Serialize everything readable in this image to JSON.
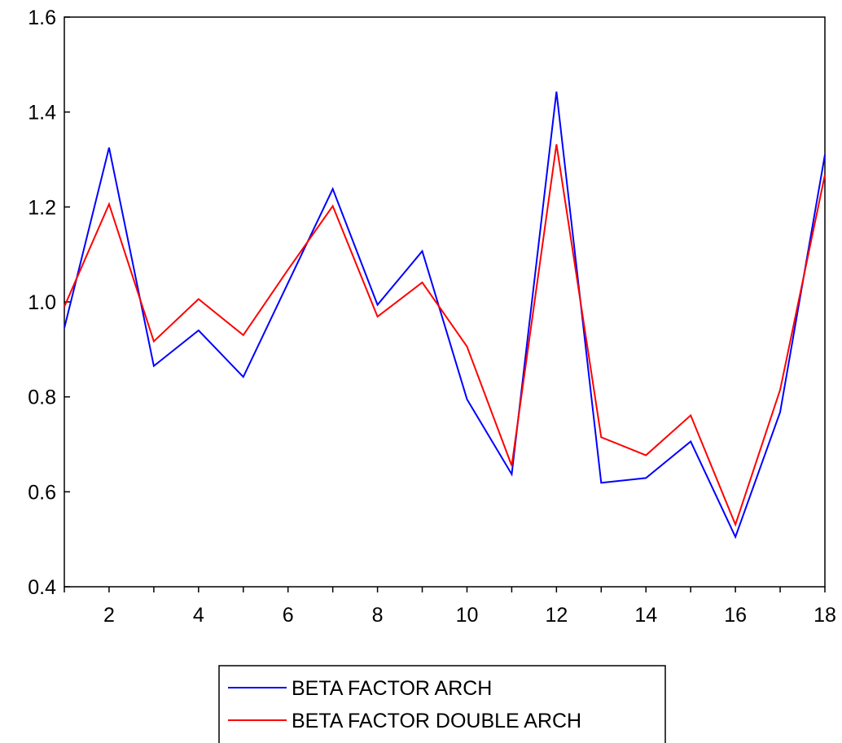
{
  "chart_data": {
    "type": "line",
    "title": "",
    "xlabel": "",
    "ylabel": "",
    "x": [
      1,
      2,
      3,
      4,
      5,
      6,
      7,
      8,
      9,
      10,
      11,
      12,
      13,
      14,
      15,
      16,
      17,
      18
    ],
    "xlim": [
      1,
      18
    ],
    "ylim": [
      0.4,
      1.6
    ],
    "x_ticks": [
      2,
      4,
      6,
      8,
      10,
      12,
      14,
      16,
      18
    ],
    "x_tick_labels": [
      "2",
      "4",
      "6",
      "8",
      "10",
      "12",
      "14",
      "16",
      "18"
    ],
    "y_ticks": [
      0.4,
      0.6,
      0.8,
      1.0,
      1.2,
      1.4,
      1.6
    ],
    "y_tick_labels": [
      "0.4",
      "0.6",
      "0.8",
      "1.0",
      "1.2",
      "1.4",
      "1.6"
    ],
    "grid": false,
    "legend_position": "bottom-center",
    "series": [
      {
        "name": "BETA FACTOR ARCH",
        "color": "#0000ff",
        "values": [
          0.945,
          1.325,
          0.865,
          0.94,
          0.842,
          1.04,
          1.238,
          0.994,
          1.107,
          0.795,
          0.637,
          1.443,
          0.619,
          0.629,
          0.706,
          0.505,
          0.768,
          1.31
        ]
      },
      {
        "name": "BETA FACTOR DOUBLE ARCH",
        "color": "#ff0000",
        "values": [
          0.99,
          1.206,
          0.917,
          1.006,
          0.93,
          1.068,
          1.202,
          0.969,
          1.041,
          0.906,
          0.655,
          1.332,
          0.715,
          0.677,
          0.761,
          0.531,
          0.815,
          1.268
        ]
      }
    ]
  }
}
